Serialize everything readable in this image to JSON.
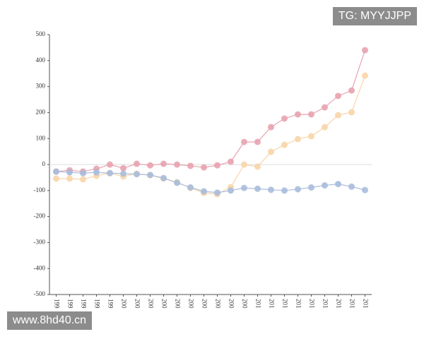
{
  "chart_data": {
    "type": "line",
    "categories": [
      "199",
      "199",
      "199",
      "199",
      "199",
      "200",
      "200",
      "200",
      "200",
      "200",
      "200",
      "200",
      "200",
      "200",
      "200",
      "201",
      "201",
      "201",
      "201",
      "201",
      "201",
      "201",
      "201",
      "201"
    ],
    "series": [
      {
        "color": "#e8a3b0",
        "values": [
          -27,
          -22,
          -27,
          -16,
          0,
          -14,
          3,
          -3,
          3,
          0,
          -5,
          -11,
          -3,
          11,
          87,
          87,
          144,
          177,
          193,
          193,
          220,
          264,
          285,
          440
        ]
      },
      {
        "color": "#f8d5aa",
        "values": [
          -54,
          -54,
          -57,
          -43,
          -33,
          -46,
          -35,
          -41,
          -54,
          -68,
          -90,
          -109,
          -114,
          -87,
          0,
          -8,
          49,
          76,
          98,
          109,
          144,
          190,
          201,
          342
        ]
      },
      {
        "color": "#a9bddb",
        "values": [
          -27,
          -30,
          -33,
          -30,
          -33,
          -35,
          -37,
          -40,
          -52,
          -70,
          -88,
          -103,
          -108,
          -100,
          -90,
          -93,
          -97,
          -100,
          -95,
          -88,
          -80,
          -75,
          -85,
          -98
        ]
      }
    ],
    "ylim": [
      -500,
      500
    ],
    "yticks": [
      -500,
      -400,
      -300,
      -200,
      -100,
      0,
      100,
      200,
      300,
      400,
      500
    ],
    "zero_line": true,
    "watermarks": [
      "TG: MYYJJPP",
      "www.8hd40.cn"
    ]
  }
}
